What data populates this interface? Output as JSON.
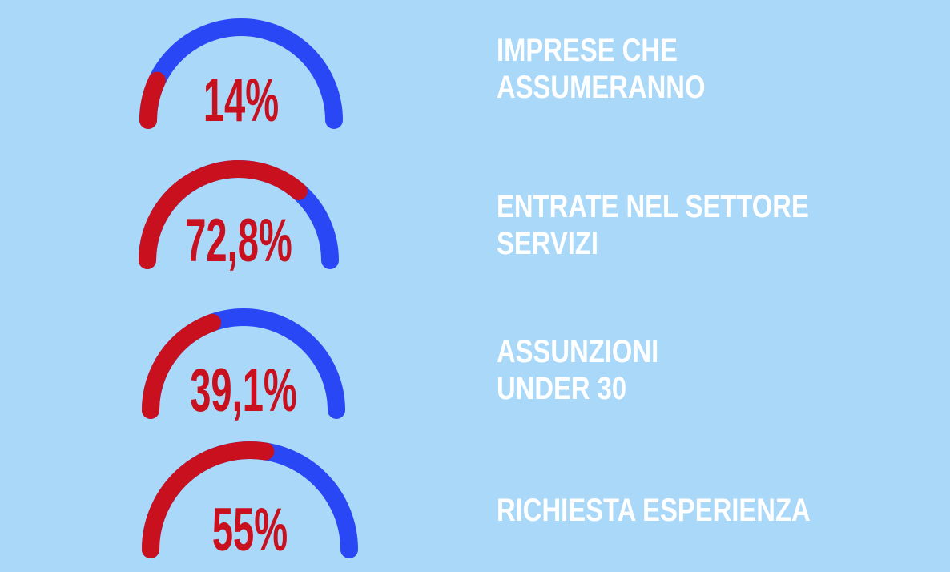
{
  "chart_data": [
    {
      "type": "gauge",
      "label": [
        "IMPRESE CHE",
        "ASSUMERANNO"
      ],
      "value": 14,
      "value_label": "14%",
      "ylim": [
        0,
        100
      ],
      "color": "#c8101e",
      "track_color": "#2a47f5"
    },
    {
      "type": "gauge",
      "label": [
        "ENTRATE NEL SETTORE",
        "SERVIZI"
      ],
      "value": 72.8,
      "value_label": "72,8%",
      "ylim": [
        0,
        100
      ],
      "color": "#c8101e",
      "track_color": "#2a47f5"
    },
    {
      "type": "gauge",
      "label": [
        "ASSUNZIONI",
        "UNDER 30"
      ],
      "value": 39.1,
      "value_label": "39,1%",
      "ylim": [
        0,
        100
      ],
      "color": "#c8101e",
      "track_color": "#2a47f5"
    },
    {
      "type": "gauge",
      "label": [
        "RICHIESTA ESPERIENZA"
      ],
      "value": 55,
      "value_label": "55%",
      "ylim": [
        0,
        100
      ],
      "color": "#c8101e",
      "track_color": "#2a47f5"
    }
  ]
}
